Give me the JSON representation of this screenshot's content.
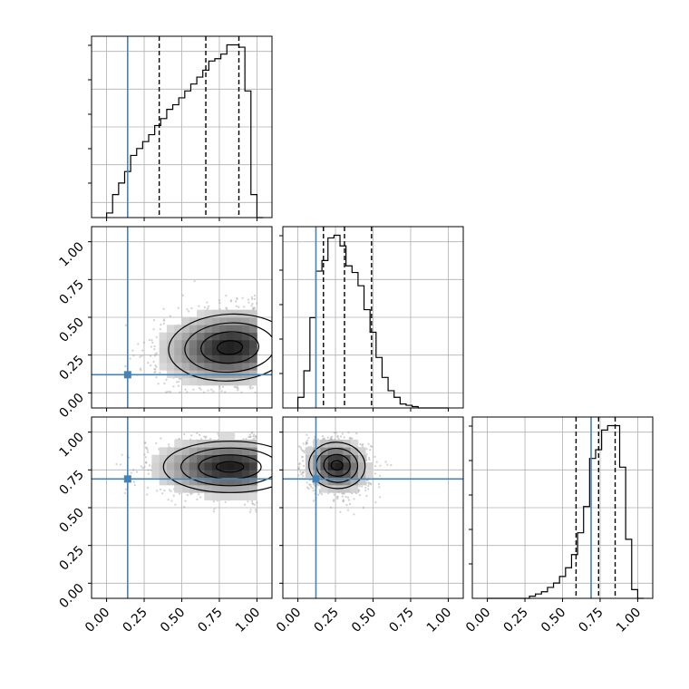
{
  "chart_data": {
    "type": "corner",
    "tick_labels": [
      "0.00",
      "0.25",
      "0.50",
      "0.75",
      "1.00"
    ],
    "tick_values": [
      0,
      0.25,
      0.5,
      0.75,
      1.0
    ],
    "range": [
      -0.1,
      1.1
    ],
    "grid": true,
    "colors": {
      "truth": "#4682b4",
      "hist": "#000000",
      "scatter": "#9a9a9a",
      "grid": "#b0b0b0"
    },
    "truth_values": [
      0.14,
      0.12,
      0.69
    ],
    "quantiles": [
      [
        0.35,
        0.66,
        0.88
      ],
      [
        0.17,
        0.31,
        0.49
      ],
      [
        0.59,
        0.74,
        0.85
      ]
    ],
    "histograms": [
      {
        "bin_edges": [
          0.0,
          0.04,
          0.08,
          0.12,
          0.16,
          0.2,
          0.24,
          0.28,
          0.32,
          0.36,
          0.4,
          0.44,
          0.48,
          0.52,
          0.56,
          0.6,
          0.64,
          0.68,
          0.72,
          0.76,
          0.8,
          0.84,
          0.88,
          0.92,
          0.96,
          1.0,
          1.04
        ],
        "counts": [
          2,
          10,
          15,
          20,
          27,
          30,
          33,
          36,
          40,
          43,
          47,
          49,
          52,
          55,
          58,
          61,
          64,
          68,
          69,
          71,
          75,
          75,
          74,
          55,
          10,
          0
        ]
      },
      {
        "bin_edges": [
          0.0,
          0.04,
          0.08,
          0.12,
          0.16,
          0.2,
          0.24,
          0.28,
          0.32,
          0.36,
          0.4,
          0.44,
          0.48,
          0.52,
          0.56,
          0.6,
          0.64,
          0.68,
          0.72,
          0.76,
          0.8,
          0.84,
          0.88,
          0.92,
          0.96,
          1.0
        ],
        "counts": [
          8,
          28,
          68,
          103,
          111,
          128,
          130,
          122,
          107,
          102,
          92,
          74,
          57,
          38,
          23,
          13,
          8,
          3,
          2,
          1,
          0,
          0,
          0,
          0,
          0
        ]
      },
      {
        "bin_edges": [
          0.0,
          0.04,
          0.08,
          0.12,
          0.16,
          0.2,
          0.24,
          0.28,
          0.32,
          0.36,
          0.4,
          0.44,
          0.48,
          0.52,
          0.56,
          0.6,
          0.64,
          0.68,
          0.72,
          0.76,
          0.8,
          0.84,
          0.88,
          0.92,
          0.96,
          1.0,
          1.04
        ],
        "counts": [
          0,
          0,
          0,
          0,
          0,
          0,
          0,
          1,
          2,
          3,
          5,
          7,
          10,
          14,
          20,
          30,
          42,
          64,
          68,
          77,
          79,
          79,
          60,
          27,
          4,
          0
        ]
      }
    ],
    "joint_densities": [
      {
        "x_param": 0,
        "y_param": 1,
        "center": [
          0.82,
          0.3
        ],
        "spread": [
          0.24,
          0.13
        ],
        "correlation": 0.1,
        "x_support": [
          0.05,
          1.0
        ],
        "y_support": [
          0.0,
          1.0
        ]
      },
      {
        "x_param": 0,
        "y_param": 2,
        "center": [
          0.82,
          0.77
        ],
        "spread": [
          0.26,
          0.1
        ],
        "correlation": 0.0,
        "x_support": [
          0.05,
          1.0
        ],
        "y_support": [
          0.0,
          1.0
        ]
      },
      {
        "x_param": 1,
        "y_param": 2,
        "center": [
          0.26,
          0.78
        ],
        "spread": [
          0.11,
          0.09
        ],
        "correlation": -0.1,
        "x_support": [
          0.0,
          1.0
        ],
        "y_support": [
          0.0,
          1.0
        ]
      }
    ]
  }
}
